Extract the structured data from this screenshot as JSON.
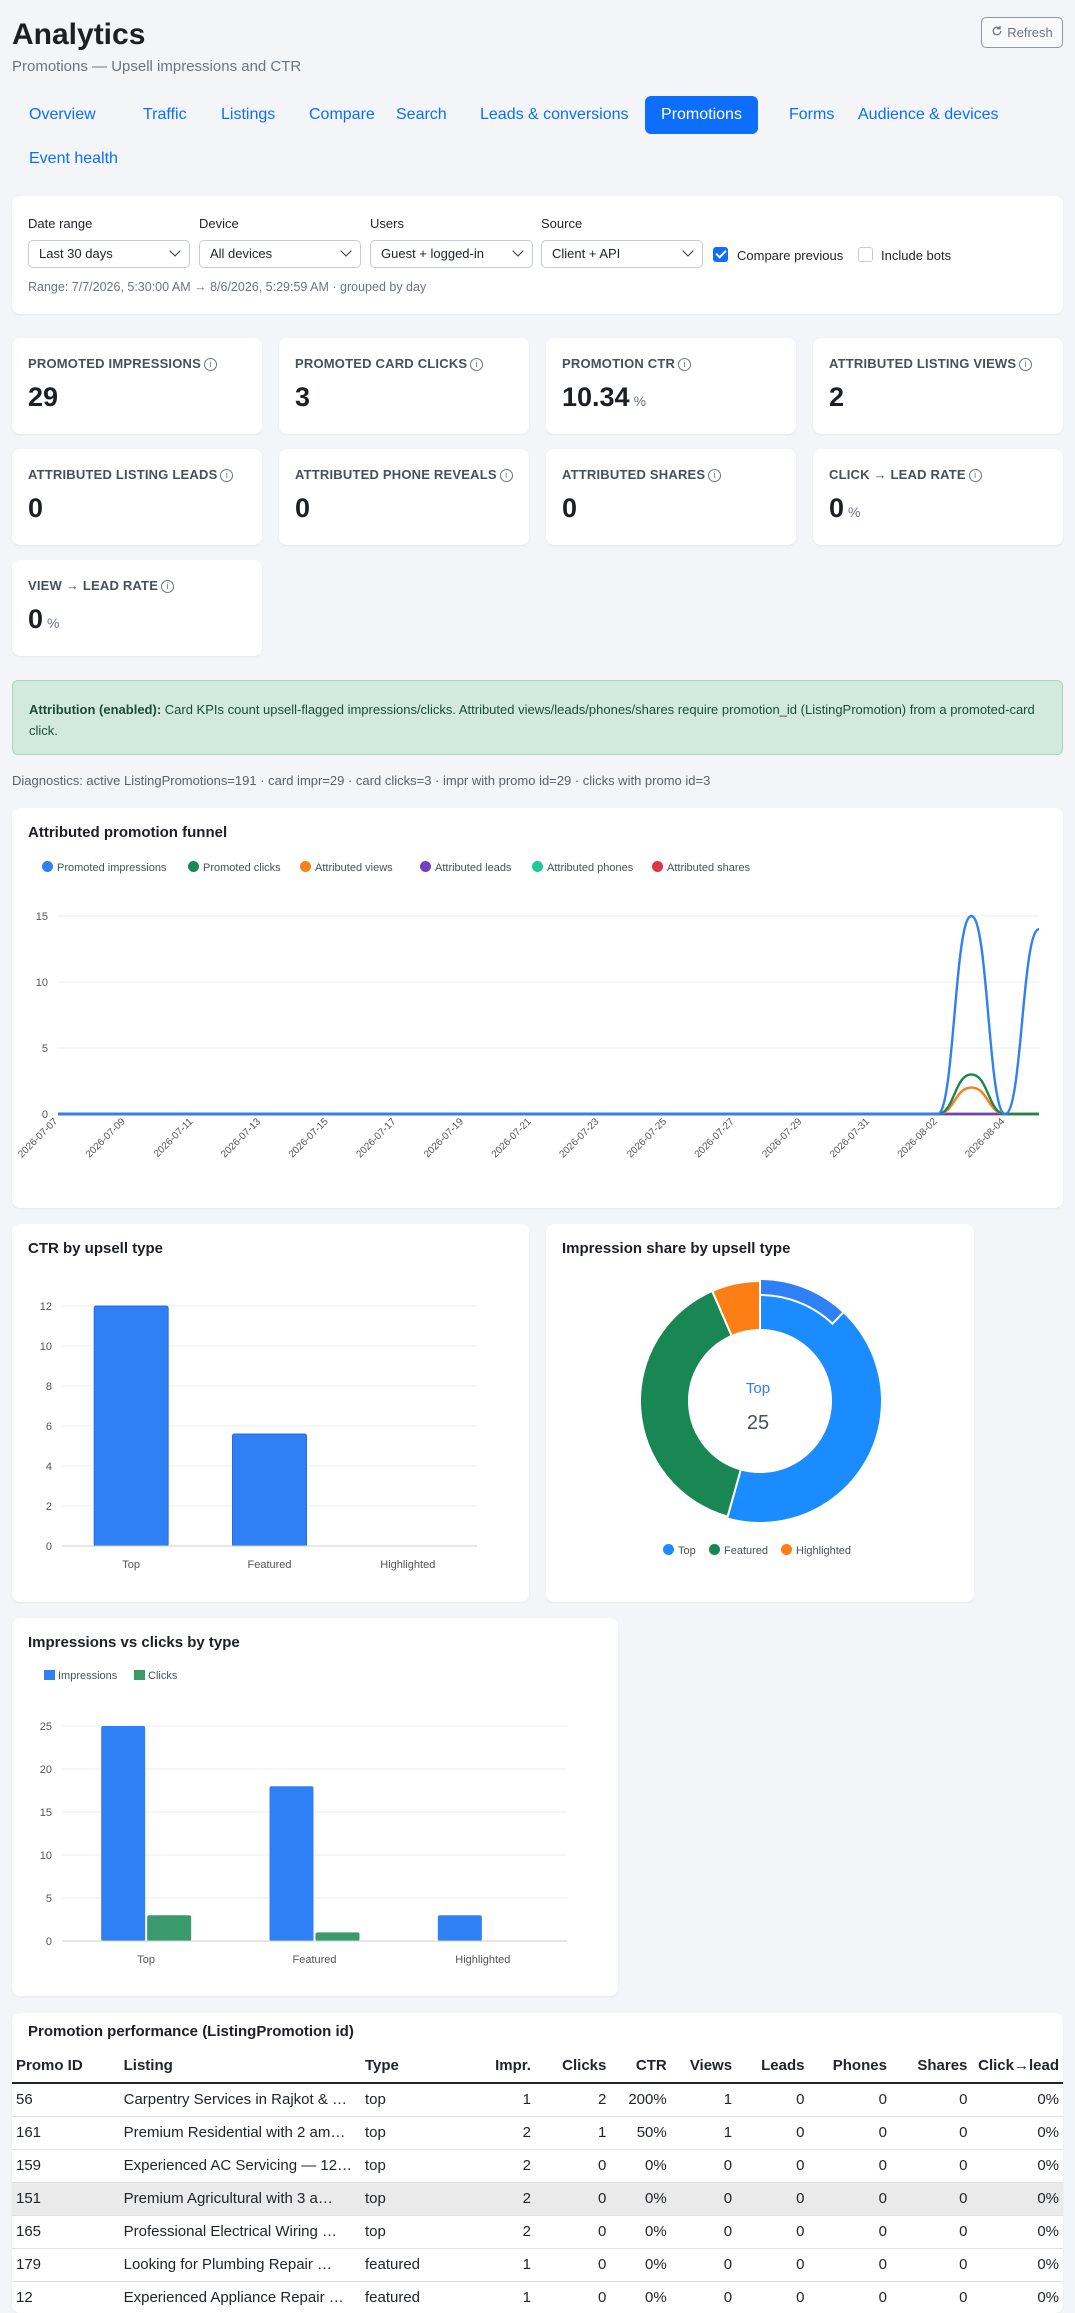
{
  "header": {
    "title": "Analytics",
    "subtitle": "Promotions — Upsell impressions and CTR",
    "refresh_label": "Refresh"
  },
  "tabs": [
    {
      "label": "Overview",
      "active": false
    },
    {
      "label": "Traffic",
      "active": false
    },
    {
      "label": "Listings",
      "active": false
    },
    {
      "label": "Compare",
      "active": false
    },
    {
      "label": "Search",
      "active": false
    },
    {
      "label": "Leads & conversions",
      "active": false
    },
    {
      "label": "Promotions",
      "active": true
    },
    {
      "label": "Forms",
      "active": false
    },
    {
      "label": "Audience & devices",
      "active": false
    },
    {
      "label": "Event health",
      "active": false
    }
  ],
  "filters": {
    "date_range": {
      "label": "Date range",
      "value": "Last 30 days"
    },
    "device": {
      "label": "Device",
      "value": "All devices"
    },
    "users": {
      "label": "Users",
      "value": "Guest + logged-in"
    },
    "source": {
      "label": "Source",
      "value": "Client + API"
    },
    "compare_previous": {
      "label": "Compare previous",
      "checked": true
    },
    "include_bots": {
      "label": "Include bots",
      "checked": false
    },
    "range_text": "Range: 7/7/2026, 5:30:00 AM → 8/6/2026, 5:29:59 AM · grouped by day"
  },
  "kpis": [
    {
      "label": "PROMOTED IMPRESSIONS",
      "value": "29",
      "unit": ""
    },
    {
      "label": "PROMOTED CARD CLICKS",
      "value": "3",
      "unit": ""
    },
    {
      "label": "PROMOTION CTR",
      "value": "10.34",
      "unit": "%"
    },
    {
      "label": "ATTRIBUTED LISTING VIEWS",
      "value": "2",
      "unit": ""
    },
    {
      "label": "ATTRIBUTED LISTING LEADS",
      "value": "0",
      "unit": ""
    },
    {
      "label": "ATTRIBUTED PHONE REVEALS",
      "value": "0",
      "unit": ""
    },
    {
      "label": "ATTRIBUTED SHARES",
      "value": "0",
      "unit": ""
    },
    {
      "label": "CLICK → LEAD RATE",
      "value": "0",
      "unit": "%"
    },
    {
      "label": "VIEW → LEAD RATE",
      "value": "0",
      "unit": "%"
    }
  ],
  "attribution": {
    "bold": "Attribution (enabled):",
    "text": " Card KPIs count upsell-flagged impressions/clicks. Attributed views/leads/phones/shares require promotion_id (ListingPromotion) from a promoted-card click."
  },
  "diagnostics": "Diagnostics: active ListingPromotions=191 · card impr=29 · card clicks=3 · impr with promo id=29 · clicks with promo id=3",
  "colors": {
    "primary": "#0d6efd",
    "impressions": "#2f7ff5",
    "clicks": "#198754",
    "views": "#fd7e14",
    "leads": "#6f42c1",
    "phones": "#20c997",
    "shares": "#dc3545",
    "donut_top": "#1a8cff"
  },
  "chart_data": [
    {
      "type": "line",
      "title": "Attributed promotion funnel",
      "x": [
        "2026-07-07",
        "2026-07-08",
        "2026-07-09",
        "2026-07-10",
        "2026-07-11",
        "2026-07-12",
        "2026-07-13",
        "2026-07-14",
        "2026-07-15",
        "2026-07-16",
        "2026-07-17",
        "2026-07-18",
        "2026-07-19",
        "2026-07-20",
        "2026-07-21",
        "2026-07-22",
        "2026-07-23",
        "2026-07-24",
        "2026-07-25",
        "2026-07-26",
        "2026-07-27",
        "2026-07-28",
        "2026-07-29",
        "2026-07-30",
        "2026-07-31",
        "2026-08-01",
        "2026-08-02",
        "2026-08-03",
        "2026-08-04",
        "2026-08-05"
      ],
      "x_tick_labels": [
        "2026-07-07",
        "2026-07-09",
        "2026-07-11",
        "2026-07-13",
        "2026-07-15",
        "2026-07-17",
        "2026-07-19",
        "2026-07-21",
        "2026-07-23",
        "2026-07-25",
        "2026-07-27",
        "2026-07-29",
        "2026-07-31",
        "2026-08-02",
        "2026-08-04"
      ],
      "ylim": [
        0,
        15
      ],
      "y_ticks": [
        0,
        5,
        10,
        15
      ],
      "legend_position": "top-left",
      "series": [
        {
          "name": "Promoted impressions",
          "color": "#2f7ff5",
          "values": [
            0,
            0,
            0,
            0,
            0,
            0,
            0,
            0,
            0,
            0,
            0,
            0,
            0,
            0,
            0,
            0,
            0,
            0,
            0,
            0,
            0,
            0,
            0,
            0,
            0,
            0,
            0,
            15,
            0,
            14
          ]
        },
        {
          "name": "Promoted clicks",
          "color": "#198754",
          "values": [
            0,
            0,
            0,
            0,
            0,
            0,
            0,
            0,
            0,
            0,
            0,
            0,
            0,
            0,
            0,
            0,
            0,
            0,
            0,
            0,
            0,
            0,
            0,
            0,
            0,
            0,
            0,
            3,
            0,
            0
          ]
        },
        {
          "name": "Attributed views",
          "color": "#fd7e14",
          "values": [
            0,
            0,
            0,
            0,
            0,
            0,
            0,
            0,
            0,
            0,
            0,
            0,
            0,
            0,
            0,
            0,
            0,
            0,
            0,
            0,
            0,
            0,
            0,
            0,
            0,
            0,
            0,
            2,
            0,
            0
          ]
        },
        {
          "name": "Attributed leads",
          "color": "#6f42c1",
          "values": [
            0,
            0,
            0,
            0,
            0,
            0,
            0,
            0,
            0,
            0,
            0,
            0,
            0,
            0,
            0,
            0,
            0,
            0,
            0,
            0,
            0,
            0,
            0,
            0,
            0,
            0,
            0,
            0,
            0,
            0
          ]
        },
        {
          "name": "Attributed phones",
          "color": "#20c997",
          "values": [
            0,
            0,
            0,
            0,
            0,
            0,
            0,
            0,
            0,
            0,
            0,
            0,
            0,
            0,
            0,
            0,
            0,
            0,
            0,
            0,
            0,
            0,
            0,
            0,
            0,
            0,
            0,
            0,
            0,
            0
          ]
        },
        {
          "name": "Attributed shares",
          "color": "#dc3545",
          "values": [
            0,
            0,
            0,
            0,
            0,
            0,
            0,
            0,
            0,
            0,
            0,
            0,
            0,
            0,
            0,
            0,
            0,
            0,
            0,
            0,
            0,
            0,
            0,
            0,
            0,
            0,
            0,
            0,
            0,
            0
          ]
        }
      ]
    },
    {
      "type": "bar",
      "title": "CTR by upsell type",
      "categories": [
        "Top",
        "Featured",
        "Highlighted"
      ],
      "values": [
        12,
        5.6,
        0
      ],
      "ylim": [
        0,
        12
      ],
      "y_ticks": [
        0,
        2,
        4,
        6,
        8,
        10,
        12
      ],
      "color": "#2f7ff5"
    },
    {
      "type": "pie",
      "title": "Impression share by upsell type",
      "center_label": "Top",
      "center_value": "25",
      "legend_position": "bottom",
      "slices": [
        {
          "name": "Top",
          "value": 25,
          "color": "#1a8cff"
        },
        {
          "name": "Featured",
          "value": 18,
          "color": "#198754"
        },
        {
          "name": "Highlighted",
          "value": 3,
          "color": "#fd7e14"
        }
      ],
      "highlight_ring": {
        "name": "Top",
        "share": 0.12
      }
    },
    {
      "type": "bar",
      "title": "Impressions vs clicks by type",
      "categories": [
        "Top",
        "Featured",
        "Highlighted"
      ],
      "ylim": [
        0,
        25
      ],
      "y_ticks": [
        0,
        5,
        10,
        15,
        20,
        25
      ],
      "legend_position": "top-left",
      "series": [
        {
          "name": "Impressions",
          "color": "#2f7ff5",
          "values": [
            25,
            18,
            3
          ]
        },
        {
          "name": "Clicks",
          "color": "#3a9a6b",
          "values": [
            3,
            1,
            0
          ]
        }
      ]
    }
  ],
  "table": {
    "title": "Promotion performance (ListingPromotion id)",
    "columns": [
      "Promo ID",
      "Listing",
      "Type",
      "Impr.",
      "Clicks",
      "CTR",
      "Views",
      "Leads",
      "Phones",
      "Shares",
      "Click→lead"
    ],
    "rows": [
      [
        "56",
        "Carpentry Services in Rajkot & …",
        "top",
        "1",
        "2",
        "200%",
        "1",
        "0",
        "0",
        "0",
        "0%"
      ],
      [
        "161",
        "Premium Residential with 2 am…",
        "top",
        "2",
        "1",
        "50%",
        "1",
        "0",
        "0",
        "0",
        "0%"
      ],
      [
        "159",
        "Experienced AC Servicing — 12…",
        "top",
        "2",
        "0",
        "0%",
        "0",
        "0",
        "0",
        "0",
        "0%"
      ],
      [
        "151",
        "Premium Agricultural with 3 a…",
        "top",
        "2",
        "0",
        "0%",
        "0",
        "0",
        "0",
        "0",
        "0%"
      ],
      [
        "165",
        "Professional Electrical Wiring …",
        "top",
        "2",
        "0",
        "0%",
        "0",
        "0",
        "0",
        "0",
        "0%"
      ],
      [
        "179",
        "Looking for Plumbing Repair …",
        "featured",
        "1",
        "0",
        "0%",
        "0",
        "0",
        "0",
        "0",
        "0%"
      ],
      [
        "12",
        "Experienced Appliance Repair …",
        "featured",
        "1",
        "0",
        "0%",
        "0",
        "0",
        "0",
        "0",
        "0%"
      ]
    ]
  }
}
